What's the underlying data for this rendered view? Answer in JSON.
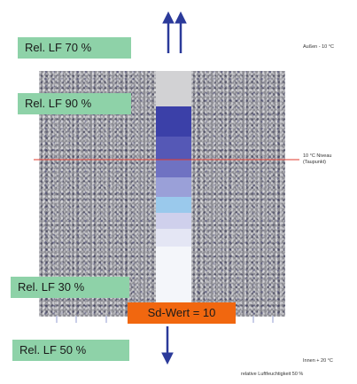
{
  "labels": {
    "rh_70": "Rel. LF 70 %",
    "rh_90": "Rel. LF 90 %",
    "rh_30": "Rel. LF 30 %",
    "rh_50": "Rel. LF 50 %",
    "sd_value": "Sd-Wert = 10"
  },
  "side_notes": {
    "outside": "Außen - 10 °C",
    "condensation_line_1": "10 °C Niveau",
    "condensation_line_2": "(Taupunkt)",
    "inside": "Innen + 20 °C",
    "footer": "relative Luftfeuchtigkeit 50 %"
  },
  "colors": {
    "label_green": "#8ed2a8",
    "sd_orange": "#f1670f",
    "arrow_blue": "#2b3a9a",
    "dew_line_red": "#e03a2e",
    "gradient_dark": "#3b40a8",
    "gradient_light": "#f4f6fa"
  },
  "icons": {
    "top_arrows": "double-up-arrow-icon",
    "bottom_arrow": "down-arrow-icon"
  }
}
